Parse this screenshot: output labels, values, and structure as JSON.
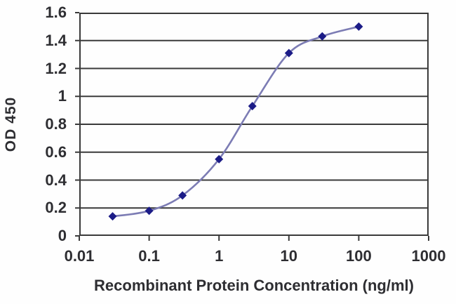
{
  "chart_data": {
    "type": "line",
    "title": "",
    "xlabel": "Recombinant Protein Concentration (ng/ml)",
    "ylabel": "OD 450",
    "x_scale": "log",
    "xlim": [
      0.01,
      1000
    ],
    "ylim": [
      0,
      1.6
    ],
    "x_tick_values": [
      0.01,
      0.1,
      1,
      10,
      100,
      1000
    ],
    "x_tick_labels": [
      "0.01",
      "0.1",
      "1",
      "10",
      "100",
      "1000"
    ],
    "y_tick_values": [
      0,
      0.2,
      0.4,
      0.6,
      0.8,
      1,
      1.2,
      1.4,
      1.6
    ],
    "y_tick_labels": [
      "0",
      "0.2",
      "0.4",
      "0.6",
      "0.8",
      "1",
      "1.2",
      "1.4",
      "1.6"
    ],
    "grid": "horizontal",
    "legend": "none",
    "series": [
      {
        "marker": "diamond",
        "line_style": "smooth",
        "x": [
          0.03,
          0.1,
          0.3,
          1,
          3,
          10,
          30,
          100
        ],
        "y": [
          0.14,
          0.18,
          0.29,
          0.55,
          0.93,
          1.31,
          1.43,
          1.5
        ]
      }
    ],
    "colors": {
      "line": "#7c7cb4",
      "marker": "#1c1c87",
      "grid": "#3a3a3a",
      "text": "#2e2e32",
      "background": "#ffffff"
    }
  }
}
